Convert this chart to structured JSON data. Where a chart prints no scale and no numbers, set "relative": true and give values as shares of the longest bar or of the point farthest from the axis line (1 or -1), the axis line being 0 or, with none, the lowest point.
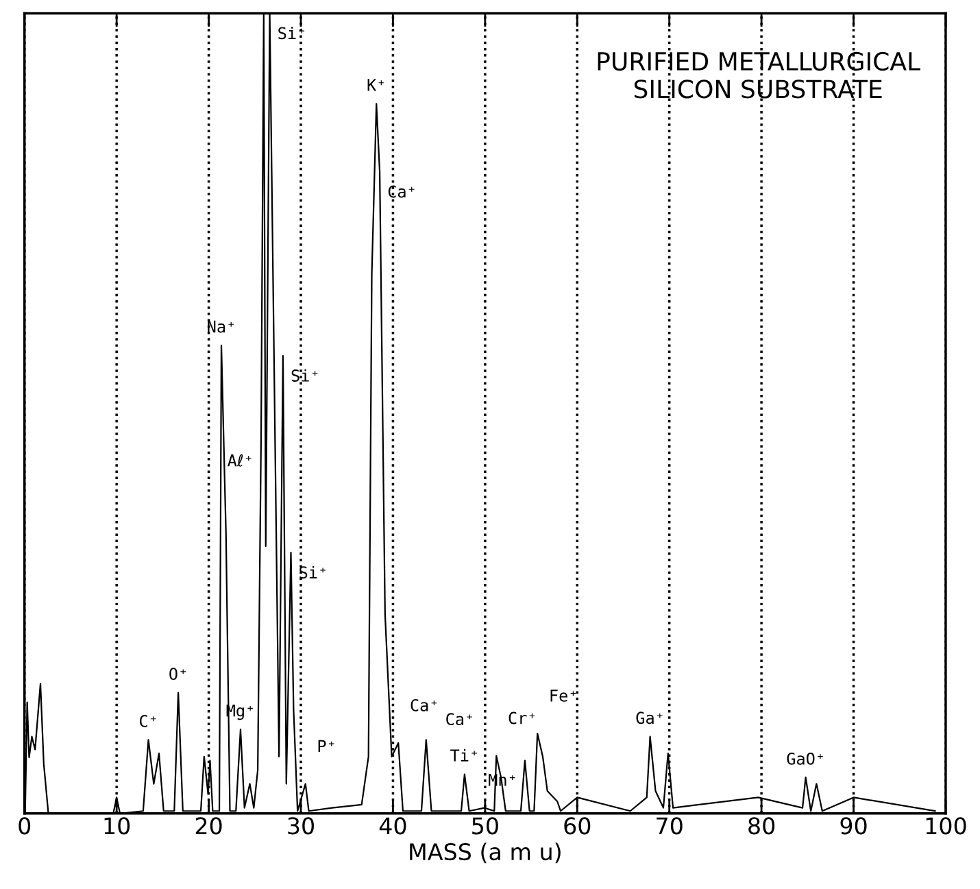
{
  "chart_data": {
    "type": "line",
    "title": "PURIFIED METALLURGICAL\nSILICON SUBSTRATE",
    "xlabel": "MASS (a m u)",
    "relative": true,
    "grid": "x",
    "marker": "none",
    "line_style": "solid",
    "xlim": [
      0,
      100
    ],
    "xticks": [
      0,
      10,
      20,
      30,
      40,
      50,
      60,
      70,
      80,
      90,
      100
    ],
    "series": [
      {
        "color": "#000000",
        "x": [
          0.07,
          0.29,
          0.5,
          0.8,
          1.15,
          1.73,
          2.09,
          2.59,
          9.64,
          10.0,
          10.36,
          12.88,
          13.45,
          14.03,
          14.6,
          15.1,
          16.26,
          16.69,
          17.19,
          19.14,
          19.5,
          19.93,
          20.14,
          20.43,
          21.15,
          21.37,
          21.87,
          22.3,
          22.95,
          23.45,
          23.88,
          24.46,
          24.89,
          25.32,
          25.68,
          25.97,
          26.19,
          26.62,
          27.63,
          28.06,
          28.42,
          28.92,
          29.21,
          29.64,
          30.5,
          30.86,
          33.38,
          36.6,
          37.34,
          37.7,
          38.2,
          38.56,
          39.14,
          39.86,
          40.58,
          41.08,
          43.09,
          43.6,
          44.17,
          47.41,
          47.77,
          48.27,
          49.93,
          51.0,
          51.22,
          51.73,
          52.23,
          53.88,
          54.32,
          54.82,
          55.32,
          55.68,
          56.26,
          56.76,
          57.84,
          58.2,
          60.0,
          65.76,
          67.55,
          67.91,
          68.5,
          69.35,
          69.86,
          70.4,
          79.64,
          84.46,
          84.8,
          85.36,
          85.97,
          86.6,
          90.0,
          98.85
        ],
        "values": [
          0,
          0.139,
          0.07,
          0.096,
          0.08,
          0.162,
          0.062,
          0,
          0,
          0.02,
          0,
          0.003,
          0.092,
          0.037,
          0.075,
          0.003,
          0.003,
          0.151,
          0.003,
          0.003,
          0.071,
          0.024,
          0.066,
          0.003,
          0.003,
          0.585,
          0.351,
          0.003,
          0.003,
          0.105,
          0.007,
          0.037,
          0.007,
          0.054,
          0.466,
          1.0,
          0.334,
          1.0,
          0.071,
          0.572,
          0.037,
          0.326,
          0.13,
          0.003,
          0.037,
          0.003,
          0.007,
          0.011,
          0.071,
          0.674,
          0.887,
          0.802,
          0.249,
          0.071,
          0.088,
          0.003,
          0.003,
          0.092,
          0.003,
          0.003,
          0.049,
          0.003,
          0.007,
          0.003,
          0.072,
          0.045,
          0.003,
          0.003,
          0.066,
          0.003,
          0.003,
          0.1,
          0.071,
          0.028,
          0.015,
          0.003,
          0.02,
          0.003,
          0.02,
          0.096,
          0.028,
          0.007,
          0.075,
          0.007,
          0.02,
          0.007,
          0.045,
          0.003,
          0.037,
          0.003,
          0.02,
          0.003
        ]
      }
    ],
    "annotations": [
      {
        "text": "Si⁺",
        "x": 26.62,
        "y": 1.0
      },
      {
        "text": "K⁺",
        "x": 38.2,
        "y": 0.887
      },
      {
        "text": "Ca⁺",
        "x": 38.56,
        "y": 0.802
      },
      {
        "text": "Na⁺",
        "x": 21.37,
        "y": 0.585
      },
      {
        "text": "Si⁺",
        "x": 28.06,
        "y": 0.572
      },
      {
        "text": "Aℓ⁺",
        "x": 25.68,
        "y": 0.466
      },
      {
        "text": "Si⁺",
        "x": 28.92,
        "y": 0.326
      },
      {
        "text": "O⁺",
        "x": 16.69,
        "y": 0.151
      },
      {
        "text": "Mg⁺",
        "x": 23.45,
        "y": 0.105
      },
      {
        "text": "C⁺",
        "x": 13.45,
        "y": 0.092
      },
      {
        "text": "P⁺",
        "x": 30.5,
        "y": 0.037
      },
      {
        "text": "Ca⁺",
        "x": 40.58,
        "y": 0.088
      },
      {
        "text": "Ca⁺",
        "x": 43.6,
        "y": 0.092
      },
      {
        "text": "Ti⁺",
        "x": 47.77,
        "y": 0.049
      },
      {
        "text": "Cr⁺",
        "x": 51.22,
        "y": 0.072
      },
      {
        "text": "Mn⁺",
        "x": 54.32,
        "y": 0.066
      },
      {
        "text": "Fe⁺",
        "x": 55.68,
        "y": 0.1
      },
      {
        "text": "Ga⁺",
        "x": 67.91,
        "y": 0.096
      },
      {
        "text": "GaO⁺",
        "x": 84.8,
        "y": 0.045
      }
    ]
  }
}
